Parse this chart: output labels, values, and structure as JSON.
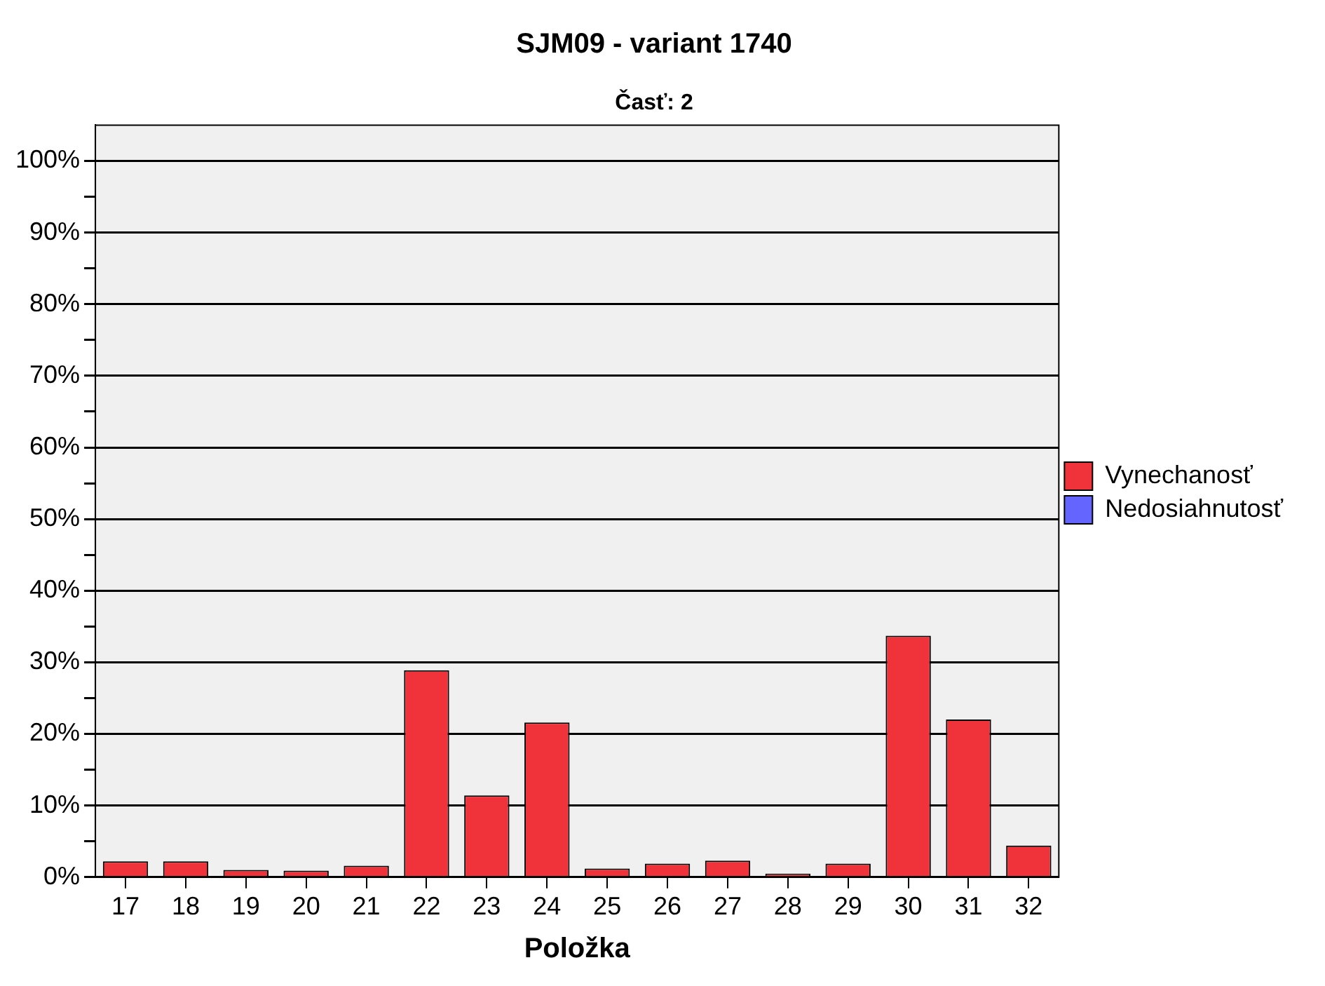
{
  "chart_data": {
    "type": "bar",
    "title": "SJM09 - variant 1740",
    "subtitle": "Časť: 2",
    "xlabel": "Položka",
    "categories": [
      "17",
      "18",
      "19",
      "20",
      "21",
      "22",
      "23",
      "24",
      "25",
      "26",
      "27",
      "28",
      "29",
      "30",
      "31",
      "32"
    ],
    "series": [
      {
        "name": "Vynechanosť",
        "color": "#f0323a",
        "values": [
          2.2,
          2.2,
          1.0,
          0.9,
          1.6,
          28.9,
          11.4,
          21.6,
          1.2,
          1.9,
          2.3,
          0.5,
          1.9,
          33.7,
          22.0,
          4.4
        ]
      },
      {
        "name": "Nedosiahnutosť",
        "color": "#6464ff",
        "values": [
          null,
          null,
          null,
          null,
          null,
          null,
          null,
          null,
          null,
          null,
          null,
          null,
          null,
          null,
          null,
          null
        ]
      }
    ],
    "stacked": true,
    "ylim": [
      0,
      105
    ],
    "yticks": [
      {
        "value": 0,
        "label": "0%"
      },
      {
        "value": 5,
        "label": null
      },
      {
        "value": 10,
        "label": "10%"
      },
      {
        "value": 15,
        "label": null
      },
      {
        "value": 20,
        "label": "20%"
      },
      {
        "value": 25,
        "label": null
      },
      {
        "value": 30,
        "label": "30%"
      },
      {
        "value": 35,
        "label": null
      },
      {
        "value": 40,
        "label": "40%"
      },
      {
        "value": 45,
        "label": null
      },
      {
        "value": 50,
        "label": "50%"
      },
      {
        "value": 55,
        "label": null
      },
      {
        "value": 60,
        "label": "60%"
      },
      {
        "value": 65,
        "label": null
      },
      {
        "value": 70,
        "label": "70%"
      },
      {
        "value": 75,
        "label": null
      },
      {
        "value": 80,
        "label": "80%"
      },
      {
        "value": 85,
        "label": null
      },
      {
        "value": 90,
        "label": "90%"
      },
      {
        "value": 95,
        "label": null
      },
      {
        "value": 100,
        "label": "100%"
      }
    ],
    "grid": "y",
    "legend": "right"
  }
}
